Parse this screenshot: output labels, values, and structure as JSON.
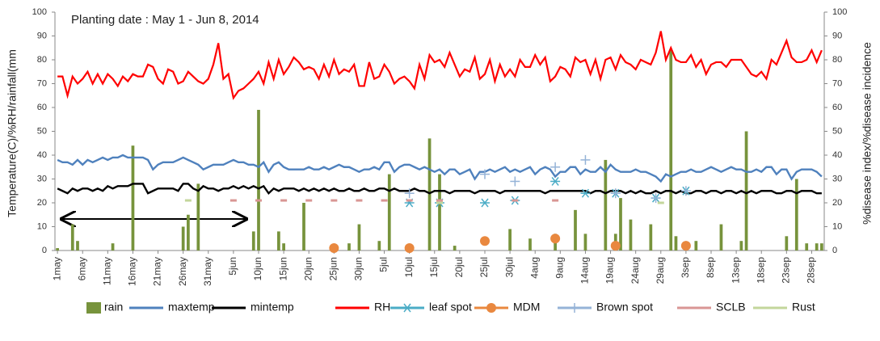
{
  "chart_data": {
    "type": "combo",
    "title": "Planting date : May 1 - Jun 8, 2014",
    "y_label": "Temperature(C)/%RH/rainfall(mm",
    "y2_label": "%disease index/%disease incidence",
    "ylim": [
      0,
      100
    ],
    "yticks": [
      0,
      10,
      20,
      30,
      40,
      50,
      60,
      70,
      80,
      90,
      100
    ],
    "y2lim": [
      0,
      100
    ],
    "y2ticks": [
      0,
      10,
      20,
      30,
      40,
      50,
      60,
      70,
      80,
      90,
      100
    ],
    "categories": [
      "1may",
      null,
      null,
      null,
      null,
      "6may",
      null,
      null,
      null,
      null,
      "11may",
      null,
      null,
      null,
      null,
      "16may",
      null,
      null,
      null,
      null,
      "21may",
      null,
      null,
      null,
      null,
      "26may",
      null,
      null,
      null,
      null,
      "31may",
      null,
      null,
      null,
      null,
      "5jun",
      null,
      null,
      null,
      null,
      "10jun",
      null,
      null,
      null,
      null,
      "15jun",
      null,
      null,
      null,
      null,
      "20jun",
      null,
      null,
      null,
      null,
      "25jun",
      null,
      null,
      null,
      null,
      "30jun",
      null,
      null,
      null,
      null,
      "5jul",
      null,
      null,
      null,
      null,
      "10jul",
      null,
      null,
      null,
      null,
      "15jul",
      null,
      null,
      null,
      null,
      "20jul",
      null,
      null,
      null,
      null,
      "25jul",
      null,
      null,
      null,
      null,
      "30jul",
      null,
      null,
      null,
      null,
      "4aug",
      null,
      null,
      null,
      null,
      "9aug",
      null,
      null,
      null,
      null,
      "14aug",
      null,
      null,
      null,
      null,
      "19aug",
      null,
      null,
      null,
      null,
      "24aug",
      null,
      null,
      null,
      null,
      "29aug",
      null,
      null,
      null,
      null,
      "3sep",
      null,
      null,
      null,
      null,
      "8sep",
      null,
      null,
      null,
      null,
      "13sep",
      null,
      null,
      null,
      null,
      "18sep",
      null,
      null,
      null,
      null,
      "23sep",
      null,
      null,
      null,
      null,
      "28sep",
      null,
      null
    ],
    "series": [
      {
        "name": "rain",
        "type": "bar",
        "color": "#77933c",
        "values": [
          1,
          0,
          0,
          11,
          4,
          0,
          0,
          0,
          0,
          0,
          0,
          3,
          0,
          0,
          0,
          44,
          0,
          0,
          0,
          0,
          0,
          0,
          0,
          0,
          0,
          10,
          15,
          0,
          28,
          0,
          0,
          0,
          0,
          0,
          0,
          0,
          0,
          0,
          0,
          8,
          59,
          0,
          0,
          0,
          8,
          3,
          0,
          0,
          0,
          20,
          0,
          0,
          0,
          0,
          0,
          0,
          0,
          0,
          3,
          0,
          11,
          0,
          0,
          0,
          4,
          0,
          32,
          0,
          0,
          0,
          2,
          0,
          0,
          0,
          47,
          0,
          32,
          0,
          0,
          2,
          0,
          0,
          0,
          0,
          0,
          0,
          0,
          0,
          0,
          0,
          9,
          0,
          0,
          0,
          5,
          0,
          0,
          0,
          0,
          7,
          0,
          0,
          0,
          17,
          0,
          7,
          0,
          0,
          0,
          38,
          0,
          7,
          22,
          0,
          13,
          0,
          0,
          0,
          11,
          0,
          0,
          0,
          84,
          6,
          0,
          0,
          0,
          4,
          0,
          0,
          0,
          0,
          11,
          0,
          0,
          0,
          4,
          50,
          0,
          0,
          0,
          0,
          0,
          0,
          0,
          6,
          0,
          30,
          0,
          3,
          0,
          3,
          3
        ]
      },
      {
        "name": "maxtemp",
        "type": "line",
        "color": "#4f81bd",
        "values": [
          38,
          37,
          37,
          36,
          38,
          36,
          38,
          37,
          38,
          39,
          38,
          39,
          39,
          40,
          39,
          39,
          39,
          39,
          38,
          34,
          36,
          37,
          37,
          37,
          38,
          39,
          38,
          37,
          36,
          34,
          35,
          36,
          36,
          36,
          37,
          38,
          37,
          37,
          36,
          36,
          35,
          37,
          33,
          36,
          37,
          35,
          34,
          34,
          34,
          34,
          35,
          34,
          34,
          35,
          34,
          35,
          36,
          35,
          35,
          34,
          33,
          34,
          34,
          35,
          34,
          37,
          37,
          33,
          35,
          36,
          36,
          35,
          34,
          35,
          34,
          33,
          34,
          32,
          34,
          34,
          32,
          33,
          34,
          30,
          33,
          33,
          34,
          33,
          34,
          35,
          33,
          34,
          33,
          34,
          35,
          32,
          34,
          35,
          34,
          31,
          33,
          33,
          35,
          35,
          32,
          34,
          33,
          33,
          35,
          33,
          36,
          34,
          33,
          33,
          33,
          34,
          33,
          33,
          32,
          31,
          29,
          32,
          31,
          32,
          33,
          33,
          34,
          33,
          33,
          34,
          35,
          34,
          33,
          34,
          35,
          34,
          34,
          33,
          33,
          34,
          33,
          35,
          35,
          32,
          34,
          34,
          30,
          33,
          34,
          34,
          34,
          33,
          31
        ]
      },
      {
        "name": "mintemp",
        "type": "line",
        "color": "#000000",
        "values": [
          26,
          25,
          24,
          26,
          25,
          26,
          26,
          25,
          26,
          25,
          27,
          26,
          27,
          27,
          27,
          28,
          28,
          28,
          24,
          25,
          26,
          26,
          26,
          26,
          25,
          28,
          28,
          26,
          25,
          27,
          26,
          26,
          25,
          26,
          26,
          27,
          26,
          27,
          26,
          27,
          26,
          27,
          24,
          26,
          25,
          26,
          26,
          26,
          25,
          26,
          25,
          26,
          25,
          26,
          25,
          26,
          25,
          25,
          26,
          25,
          25,
          26,
          25,
          25,
          26,
          26,
          25,
          26,
          25,
          25,
          25,
          26,
          25,
          25,
          24,
          25,
          25,
          25,
          24,
          25,
          25,
          25,
          25,
          24,
          25,
          25,
          25,
          25,
          24,
          25,
          25,
          25,
          25,
          25,
          25,
          25,
          25,
          24,
          25,
          25,
          25,
          25,
          25,
          25,
          25,
          25,
          24,
          25,
          25,
          24,
          25,
          25,
          25,
          24,
          25,
          24,
          25,
          24,
          24,
          25,
          24,
          25,
          25,
          24,
          25,
          24,
          24,
          25,
          25,
          24,
          25,
          25,
          24,
          25,
          25,
          24,
          25,
          24,
          25,
          24,
          25,
          25,
          25,
          24,
          24,
          25,
          25,
          24,
          25,
          25,
          25,
          24,
          24
        ]
      },
      {
        "name": "RH",
        "type": "line",
        "color": "#ff0000",
        "values": [
          73,
          73,
          65,
          73,
          70,
          72,
          75,
          70,
          74,
          70,
          74,
          72,
          69,
          73,
          71,
          74,
          73,
          73,
          78,
          77,
          72,
          70,
          76,
          75,
          70,
          71,
          75,
          73,
          71,
          70,
          72,
          78,
          87,
          72,
          74,
          64,
          67,
          68,
          70,
          72,
          75,
          70,
          79,
          72,
          80,
          74,
          77,
          81,
          79,
          76,
          77,
          76,
          72,
          78,
          73,
          80,
          74,
          76,
          75,
          78,
          69,
          69,
          79,
          72,
          73,
          78,
          75,
          70,
          72,
          73,
          71,
          68,
          78,
          72,
          82,
          79,
          80,
          77,
          83,
          78,
          73,
          76,
          75,
          81,
          72,
          74,
          80,
          71,
          78,
          73,
          76,
          73,
          80,
          77,
          77,
          82,
          78,
          81,
          71,
          73,
          77,
          76,
          73,
          81,
          79,
          80,
          74,
          80,
          72,
          80,
          81,
          76,
          82,
          79,
          78,
          76,
          80,
          79,
          78,
          83,
          92,
          80,
          85,
          80,
          79,
          79,
          82,
          77,
          80,
          74,
          78,
          79,
          79,
          77,
          80,
          80,
          80,
          77,
          74,
          73,
          75,
          72,
          80,
          78,
          83,
          88,
          81,
          79,
          79,
          80,
          84,
          79,
          84
        ]
      },
      {
        "name": "leaf spot",
        "type": "scatter",
        "marker": "asterisk",
        "axis": "y2",
        "color": "#4bacc6",
        "x": [
          70,
          76,
          85,
          91,
          99,
          105,
          111,
          119,
          125
        ],
        "values": [
          20,
          20,
          20,
          21,
          29,
          24,
          24,
          22,
          25
        ]
      },
      {
        "name": "MDM",
        "type": "scatter",
        "marker": "circle",
        "axis": "y2",
        "color": "#e9883f",
        "x": [
          55,
          70,
          85,
          99,
          111,
          125
        ],
        "values": [
          1,
          1,
          4,
          5,
          2,
          2
        ]
      },
      {
        "name": "Brown spot",
        "type": "scatter",
        "marker": "plus",
        "axis": "y2",
        "color": "#95b3d7",
        "x": [
          70,
          85,
          91,
          99,
          105,
          111,
          119,
          125
        ],
        "values": [
          24,
          32,
          29,
          35,
          38,
          24,
          22,
          25
        ]
      },
      {
        "name": "SCLB",
        "type": "scatter",
        "marker": "dash",
        "axis": "y2",
        "color": "#d99694",
        "x": [
          35,
          40,
          45,
          50,
          55,
          60,
          65,
          70,
          76,
          91,
          99
        ],
        "values": [
          21,
          21,
          21,
          21,
          21,
          21,
          21,
          21,
          21,
          21,
          21
        ]
      },
      {
        "name": "Rust",
        "type": "scatter",
        "marker": "dash",
        "axis": "y2",
        "color": "#c3d69b",
        "x": [
          26,
          76,
          120
        ],
        "values": [
          21,
          20,
          20
        ]
      }
    ]
  }
}
